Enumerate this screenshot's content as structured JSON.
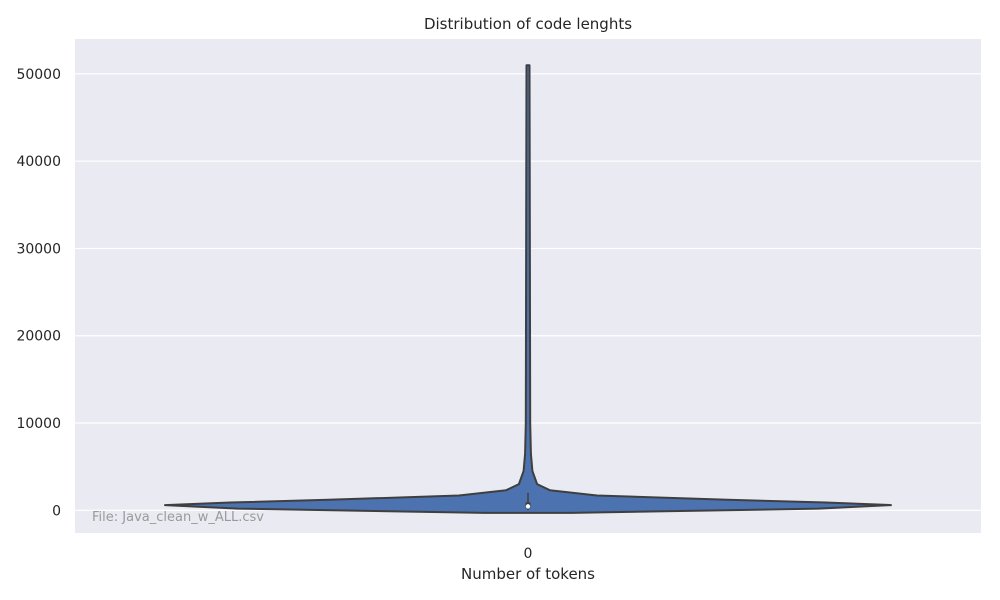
{
  "chart_data": {
    "type": "violin",
    "title": "Distribution of code lenghts",
    "xlabel": "Number of tokens",
    "ylabel": "",
    "categories": [
      "0"
    ],
    "ylim": [
      -2600,
      54000
    ],
    "yticks": [
      0,
      10000,
      20000,
      30000,
      40000,
      50000
    ],
    "ytick_labels": [
      "0",
      "10000",
      "20000",
      "30000",
      "40000",
      "50000"
    ],
    "grid": true,
    "legend": "none",
    "violin": {
      "max": 51000,
      "min_extent": -300,
      "density_profile": [
        {
          "y": -300,
          "w": 0.12
        },
        {
          "y": 200,
          "w": 0.8
        },
        {
          "y": 600,
          "w": 1.0
        },
        {
          "y": 900,
          "w": 0.82
        },
        {
          "y": 1200,
          "w": 0.55
        },
        {
          "y": 1700,
          "w": 0.19
        },
        {
          "y": 2300,
          "w": 0.06
        },
        {
          "y": 3000,
          "w": 0.025
        },
        {
          "y": 4500,
          "w": 0.012
        },
        {
          "y": 6500,
          "w": 0.008
        },
        {
          "y": 10000,
          "w": 0.006
        },
        {
          "y": 51000,
          "w": 0.004
        }
      ],
      "box": {
        "q1": 250,
        "median": 450,
        "q3": 900,
        "whisker_low": 0,
        "whisker_high": 2000
      }
    },
    "annotation": "File: Java_clean_w_ALL.csv",
    "colors": {
      "background": "#eaeaf2",
      "grid": "#ffffff",
      "violin_fill": "#4c72b0",
      "violin_edge": "#3f3f3f",
      "median": "#ffffff",
      "text": "#262626",
      "annotation": "#9a9a9a"
    }
  }
}
